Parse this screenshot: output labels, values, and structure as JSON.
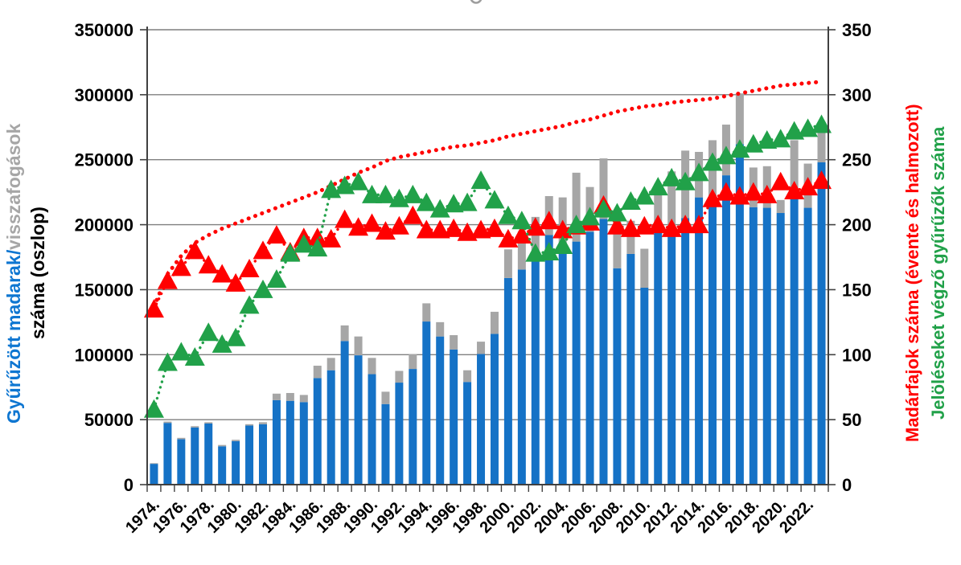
{
  "chart_data": {
    "type": "combo",
    "title": "",
    "x": [
      1974,
      1975,
      1976,
      1977,
      1978,
      1979,
      1980,
      1981,
      1982,
      1983,
      1984,
      1985,
      1986,
      1987,
      1988,
      1989,
      1990,
      1991,
      1992,
      1993,
      1994,
      1995,
      1996,
      1997,
      1998,
      1999,
      2000,
      2001,
      2002,
      2003,
      2004,
      2005,
      2006,
      2007,
      2008,
      2009,
      2010,
      2011,
      2012,
      2013,
      2014,
      2015,
      2016,
      2017,
      2018,
      2019,
      2020,
      2021,
      2022,
      2023
    ],
    "x_tick_labels": [
      "1974.",
      "1976.",
      "1978.",
      "1980.",
      "1982.",
      "1984.",
      "1986.",
      "1988.",
      "1990.",
      "1992.",
      "1994.",
      "1996.",
      "1998.",
      "2000.",
      "2002.",
      "2004.",
      "2006.",
      "2008.",
      "2010.",
      "2012.",
      "2014.",
      "2016.",
      "2018.",
      "2020.",
      "2022."
    ],
    "left_axis": {
      "title_blue": "Gyűrűzött madarak",
      "title_slash": " / ",
      "title_gray": "visszafogások",
      "title_line2": "száma (oszlop)",
      "range": [
        0,
        350000
      ],
      "tick_step": 50000,
      "ticks": [
        "0",
        "50000",
        "100000",
        "150000",
        "200000",
        "250000",
        "300000",
        "350000"
      ]
    },
    "right_axis": {
      "title_red": "Madárfajok száma (évente és halmozott)",
      "title_green": "Jelöléseket végző gyűrűzők száma",
      "range": [
        0,
        350
      ],
      "tick_step": 50,
      "ticks": [
        "0",
        "50",
        "100",
        "150",
        "200",
        "250",
        "300",
        "350"
      ]
    },
    "grid": true,
    "legend": "none",
    "series": [
      {
        "name": "ringed-birds",
        "type": "bar",
        "axis": "left",
        "color": "#1572C6",
        "values": [
          16000,
          47500,
          35000,
          44000,
          47000,
          29500,
          33500,
          45500,
          46500,
          65000,
          64500,
          63500,
          82000,
          88000,
          110500,
          99500,
          85000,
          62000,
          78500,
          89000,
          125500,
          114000,
          104000,
          79000,
          100500,
          116000,
          159000,
          165500,
          176500,
          192000,
          184000,
          187000,
          194500,
          204500,
          166500,
          177500,
          151500,
          196000,
          196500,
          205000,
          221000,
          222000,
          238000,
          262000,
          213500,
          213000,
          209000,
          223000,
          213000,
          248000
        ]
      },
      {
        "name": "recaptures",
        "type": "bar-stacked",
        "axis": "left",
        "color": "#A6A6A6",
        "values": [
          500,
          1000,
          1000,
          1000,
          1000,
          1000,
          1000,
          1000,
          1500,
          5000,
          6000,
          5500,
          9500,
          9500,
          12000,
          14500,
          12500,
          9500,
          9000,
          11500,
          14000,
          11000,
          11000,
          9000,
          9500,
          17000,
          22000,
          29500,
          29500,
          30000,
          37000,
          53000,
          34500,
          46500,
          36000,
          25500,
          30000,
          35500,
          44500,
          52000,
          35000,
          43000,
          39000,
          39000,
          30500,
          32000,
          10000,
          42000,
          34000,
          30000
        ]
      },
      {
        "name": "species-annual",
        "type": "line-triangle",
        "axis": "right",
        "color": "#FF0000",
        "values": [
          135,
          157,
          167,
          180,
          169,
          162,
          155,
          166,
          180,
          192,
          179,
          190,
          190,
          189,
          204,
          198,
          201,
          195,
          199,
          207,
          196,
          196,
          197,
          194,
          196,
          197,
          189,
          192,
          198,
          203,
          196,
          199,
          202,
          215,
          199,
          197,
          199,
          200,
          197,
          200,
          200,
          220,
          225,
          222,
          225,
          223,
          233,
          226,
          229,
          234
        ]
      },
      {
        "name": "species-cumulative",
        "type": "dotted-line",
        "axis": "right",
        "color": "#FF0000",
        "values": [
          137,
          162,
          176,
          186,
          192,
          197,
          201,
          205,
          209,
          213,
          217,
          221,
          225,
          230,
          235,
          240,
          244,
          249,
          252,
          254,
          256,
          258,
          260,
          261,
          263,
          265,
          268,
          270,
          272,
          274,
          276,
          279,
          281,
          284,
          287,
          289,
          291,
          292,
          294,
          295,
          296,
          297,
          299,
          301,
          303,
          305,
          307,
          308,
          309,
          310
        ]
      },
      {
        "name": "ringers",
        "type": "line-triangle",
        "axis": "right",
        "color": "#21A149",
        "values": [
          58,
          94,
          102,
          98,
          117,
          108,
          113,
          138,
          150,
          158,
          178,
          185,
          182,
          227,
          230,
          233,
          223,
          223,
          220,
          223,
          217,
          212,
          216,
          217,
          234,
          219,
          207,
          203,
          178,
          179,
          184,
          200,
          206,
          212,
          209,
          218,
          222,
          229,
          236,
          233,
          240,
          248,
          253,
          258,
          262,
          265,
          266,
          272,
          274,
          277
        ]
      }
    ]
  }
}
